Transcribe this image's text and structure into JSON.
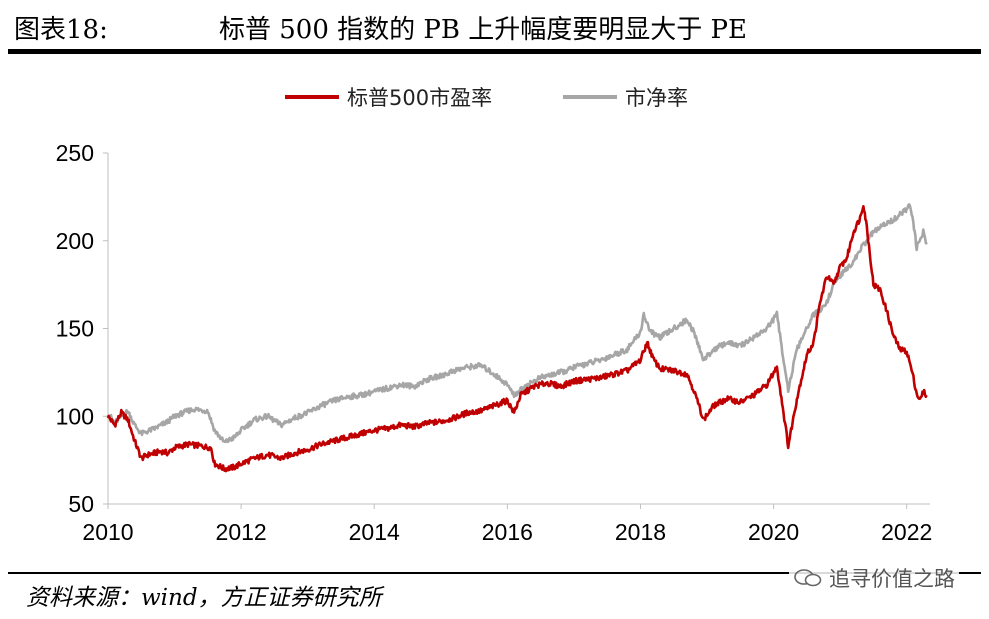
{
  "header": {
    "figure_label": "图表18:",
    "title": "标普 500 指数的 PB 上升幅度要明显大于 PE"
  },
  "footer": {
    "source": "资料来源：wind，方正证券研究所",
    "watermark": "追寻价值之路"
  },
  "chart_data": {
    "type": "line",
    "x_ticks": [
      "2010",
      "2012",
      "2014",
      "2016",
      "2018",
      "2020",
      "2022"
    ],
    "y_ticks": [
      50,
      100,
      150,
      200,
      250
    ],
    "ylim": [
      50,
      250
    ],
    "xlim": [
      2010.0,
      2022.35
    ],
    "grid": false,
    "legend_position": "top",
    "series": [
      {
        "name": "标普500市盈率",
        "color": "#C00000",
        "points": [
          [
            2010.0,
            100
          ],
          [
            2010.1,
            95
          ],
          [
            2010.2,
            102
          ],
          [
            2010.3,
            98
          ],
          [
            2010.4,
            86
          ],
          [
            2010.5,
            76
          ],
          [
            2010.6,
            78
          ],
          [
            2010.8,
            80
          ],
          [
            2010.9,
            79
          ],
          [
            2011.0,
            82
          ],
          [
            2011.2,
            84
          ],
          [
            2011.4,
            83
          ],
          [
            2011.55,
            82
          ],
          [
            2011.6,
            73
          ],
          [
            2011.75,
            70
          ],
          [
            2011.9,
            71
          ],
          [
            2012.0,
            73
          ],
          [
            2012.2,
            76
          ],
          [
            2012.4,
            78
          ],
          [
            2012.6,
            76
          ],
          [
            2012.8,
            79
          ],
          [
            2013.0,
            81
          ],
          [
            2013.2,
            84
          ],
          [
            2013.4,
            86
          ],
          [
            2013.6,
            88
          ],
          [
            2013.8,
            90
          ],
          [
            2014.0,
            92
          ],
          [
            2014.2,
            93
          ],
          [
            2014.4,
            95
          ],
          [
            2014.6,
            94
          ],
          [
            2014.8,
            96
          ],
          [
            2015.0,
            97
          ],
          [
            2015.2,
            99
          ],
          [
            2015.4,
            102
          ],
          [
            2015.6,
            103
          ],
          [
            2015.8,
            106
          ],
          [
            2016.0,
            109
          ],
          [
            2016.1,
            102
          ],
          [
            2016.2,
            112
          ],
          [
            2016.4,
            117
          ],
          [
            2016.6,
            119
          ],
          [
            2016.8,
            117
          ],
          [
            2017.0,
            120
          ],
          [
            2017.2,
            121
          ],
          [
            2017.4,
            122
          ],
          [
            2017.6,
            124
          ],
          [
            2017.8,
            126
          ],
          [
            2018.0,
            132
          ],
          [
            2018.1,
            142
          ],
          [
            2018.2,
            132
          ],
          [
            2018.3,
            127
          ],
          [
            2018.5,
            126
          ],
          [
            2018.7,
            124
          ],
          [
            2018.8,
            115
          ],
          [
            2018.95,
            98
          ],
          [
            2019.1,
            106
          ],
          [
            2019.3,
            110
          ],
          [
            2019.5,
            108
          ],
          [
            2019.7,
            112
          ],
          [
            2019.9,
            118
          ],
          [
            2020.05,
            128
          ],
          [
            2020.15,
            102
          ],
          [
            2020.22,
            83
          ],
          [
            2020.35,
            110
          ],
          [
            2020.5,
            135
          ],
          [
            2020.6,
            142
          ],
          [
            2020.7,
            165
          ],
          [
            2020.8,
            180
          ],
          [
            2020.9,
            175
          ],
          [
            2021.0,
            185
          ],
          [
            2021.1,
            190
          ],
          [
            2021.2,
            205
          ],
          [
            2021.3,
            213
          ],
          [
            2021.35,
            221
          ],
          [
            2021.4,
            208
          ],
          [
            2021.5,
            175
          ],
          [
            2021.6,
            172
          ],
          [
            2021.7,
            160
          ],
          [
            2021.8,
            146
          ],
          [
            2021.9,
            138
          ],
          [
            2022.0,
            137
          ],
          [
            2022.05,
            130
          ],
          [
            2022.1,
            122
          ],
          [
            2022.15,
            113
          ],
          [
            2022.2,
            109
          ],
          [
            2022.25,
            114
          ],
          [
            2022.3,
            112
          ]
        ]
      },
      {
        "name": "市净率",
        "color": "#A6A6A6",
        "points": [
          [
            2010.0,
            102
          ],
          [
            2010.1,
            96
          ],
          [
            2010.2,
            100
          ],
          [
            2010.3,
            103
          ],
          [
            2010.4,
            95
          ],
          [
            2010.5,
            90
          ],
          [
            2010.7,
            93
          ],
          [
            2010.9,
            97
          ],
          [
            2011.0,
            100
          ],
          [
            2011.2,
            103
          ],
          [
            2011.3,
            104
          ],
          [
            2011.5,
            103
          ],
          [
            2011.6,
            92
          ],
          [
            2011.75,
            85
          ],
          [
            2011.9,
            88
          ],
          [
            2012.0,
            92
          ],
          [
            2012.2,
            98
          ],
          [
            2012.4,
            100
          ],
          [
            2012.6,
            95
          ],
          [
            2012.8,
            99
          ],
          [
            2013.0,
            102
          ],
          [
            2013.2,
            106
          ],
          [
            2013.4,
            109
          ],
          [
            2013.6,
            111
          ],
          [
            2013.8,
            112
          ],
          [
            2014.0,
            114
          ],
          [
            2014.2,
            116
          ],
          [
            2014.4,
            118
          ],
          [
            2014.6,
            117
          ],
          [
            2014.8,
            121
          ],
          [
            2015.0,
            123
          ],
          [
            2015.2,
            126
          ],
          [
            2015.4,
            128
          ],
          [
            2015.6,
            129
          ],
          [
            2015.8,
            124
          ],
          [
            2016.0,
            118
          ],
          [
            2016.1,
            112
          ],
          [
            2016.3,
            118
          ],
          [
            2016.5,
            122
          ],
          [
            2016.7,
            124
          ],
          [
            2016.9,
            126
          ],
          [
            2017.0,
            128
          ],
          [
            2017.2,
            130
          ],
          [
            2017.4,
            132
          ],
          [
            2017.6,
            135
          ],
          [
            2017.8,
            138
          ],
          [
            2018.0,
            148
          ],
          [
            2018.05,
            158
          ],
          [
            2018.15,
            148
          ],
          [
            2018.3,
            145
          ],
          [
            2018.5,
            150
          ],
          [
            2018.7,
            155
          ],
          [
            2018.8,
            148
          ],
          [
            2018.95,
            132
          ],
          [
            2019.1,
            138
          ],
          [
            2019.3,
            142
          ],
          [
            2019.5,
            140
          ],
          [
            2019.7,
            145
          ],
          [
            2019.9,
            150
          ],
          [
            2020.05,
            158
          ],
          [
            2020.12,
            140
          ],
          [
            2020.22,
            115
          ],
          [
            2020.35,
            138
          ],
          [
            2020.5,
            150
          ],
          [
            2020.6,
            158
          ],
          [
            2020.7,
            160
          ],
          [
            2020.8,
            165
          ],
          [
            2020.9,
            175
          ],
          [
            2021.0,
            180
          ],
          [
            2021.2,
            188
          ],
          [
            2021.3,
            195
          ],
          [
            2021.5,
            205
          ],
          [
            2021.7,
            210
          ],
          [
            2021.8,
            212
          ],
          [
            2021.9,
            215
          ],
          [
            2022.0,
            218
          ],
          [
            2022.05,
            220
          ],
          [
            2022.1,
            210
          ],
          [
            2022.15,
            196
          ],
          [
            2022.2,
            200
          ],
          [
            2022.25,
            205
          ],
          [
            2022.3,
            198
          ]
        ]
      }
    ]
  }
}
